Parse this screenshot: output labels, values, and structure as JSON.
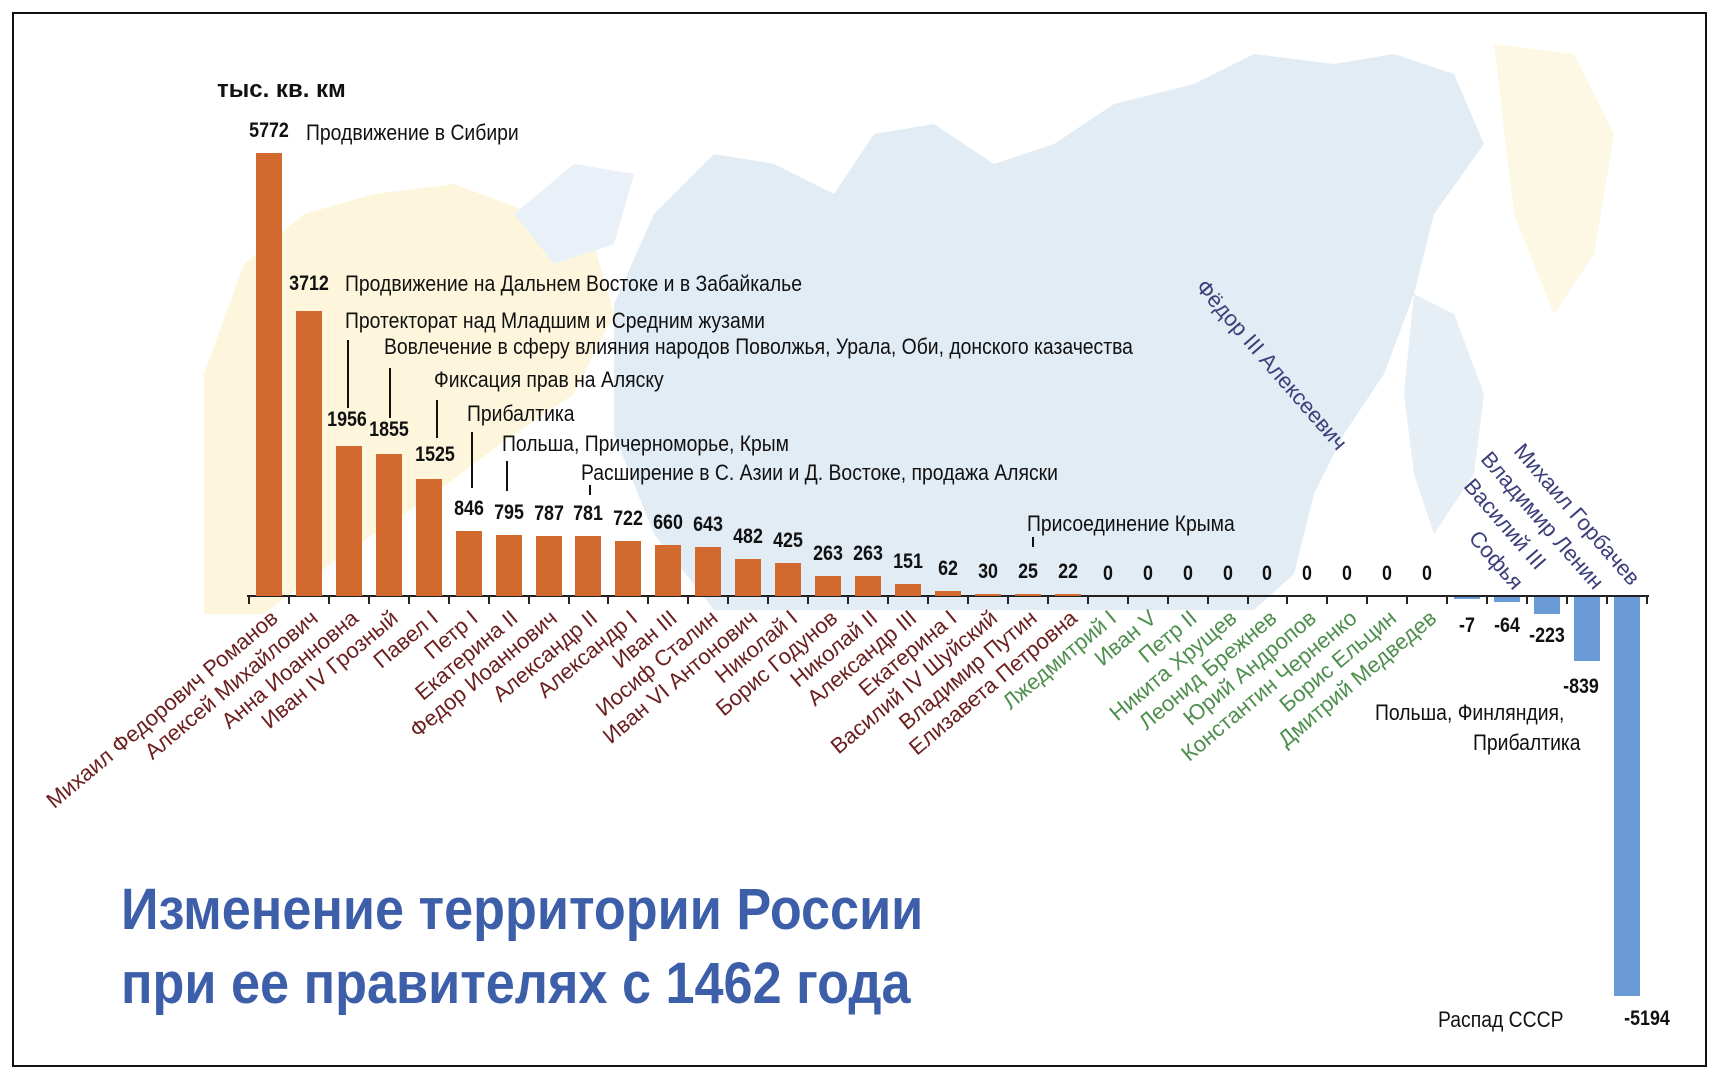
{
  "chart_data": {
    "type": "bar",
    "title": "Изменение территории России при ее правителях с 1462 года",
    "ylabel": "тыс. кв. км",
    "xlabel": "",
    "ylim": [
      -5194,
      5772
    ],
    "grid": false,
    "categories": [
      "Михаил Федорович Романов",
      "Алексей Михайлович",
      "Анна Иоанновна",
      "Иван IV Грозный",
      "Павел I",
      "Петр I",
      "Екатерина II",
      "Федор Иоаннович",
      "Александр II",
      "Александр I",
      "Иван III",
      "Иосиф Сталин",
      "Иван VI Антонович",
      "Николай I",
      "Борис Годунов",
      "Николай II",
      "Александр III",
      "Екатерина I",
      "Василий IV Шуйский",
      "Владимир Путин",
      "Елизавета Петровна",
      "Лжедмитрий I",
      "Иван V",
      "Петр II",
      "Никита Хрущев",
      "Леонид Брежнев",
      "Юрий Андропов",
      "Константин Черненко",
      "Борис Ельцин",
      "Дмитрий Медведев",
      "Фёдор III Алексеевич",
      "Софья",
      "Василий III",
      "Владимир Ленин",
      "Михаил Горбачев"
    ],
    "values": [
      5772,
      3712,
      1956,
      1855,
      1525,
      846,
      795,
      787,
      781,
      722,
      660,
      643,
      482,
      425,
      263,
      263,
      151,
      62,
      30,
      25,
      22,
      0,
      0,
      0,
      0,
      0,
      0,
      0,
      0,
      0,
      -7,
      -64,
      -223,
      -839,
      -5194
    ],
    "groups": {
      "gain": {
        "color": "#d2692e",
        "label_color": "#6b1f1f",
        "count": 21
      },
      "zero": {
        "color": "#5a9a5a",
        "label_color": "#4e8f4e",
        "count": 9
      },
      "loss": {
        "color": "#6a9bd6",
        "label_color": "#3c3f7a",
        "count": 5
      }
    },
    "annotations": [
      {
        "value": 5772,
        "text": "Продвижение в Сибири"
      },
      {
        "value": 3712,
        "text": "Продвижение на Дальнем Востоке и в Забайкалье"
      },
      {
        "value": 1956,
        "text": "Протекторат над Младшим и Средним жузами"
      },
      {
        "value": 1855,
        "text": "Вовлечение в сферу влияния народов Поволжья, Урала, Оби, донского казачества"
      },
      {
        "value": 1525,
        "text": "Фиксация прав на Аляску"
      },
      {
        "value": 846,
        "text": "Прибалтика"
      },
      {
        "value": 795,
        "text": "Польша, Причерноморье, Крым"
      },
      {
        "value": 781,
        "text": "Расширение в С. Азии и Д. Востоке, продажа Аляски"
      },
      {
        "value": 25,
        "text": "Присоединение Крыма"
      },
      {
        "value": -839,
        "text": "Польша, Финляндия, Прибалтика"
      },
      {
        "value": -5194,
        "text": "Распад СССР"
      }
    ]
  },
  "header": {
    "unit": "тыс. кв. км"
  },
  "title": {
    "line1": "Изменение территории России",
    "line2": "при ее правителях с 1462 года"
  },
  "annotations": {
    "a5772": "Продвижение в Сибири",
    "a3712": "Продвижение на Дальнем Востоке и в Забайкалье",
    "a1956": "Протекторат над Младшим и Средним жузами",
    "a1855": "Вовлечение в сферу влияния народов Поволжья, Урала, Оби, донского казачества",
    "a1525": "Фиксация прав на Аляску",
    "a846": "Прибалтика",
    "a795": "Польша, Причерноморье, Крым",
    "a781": "Расширение в С. Азии и Д. Востоке, продажа Аляски",
    "a25": "Присоединение Крыма",
    "a839_l1": "Польша, Финляндия,",
    "a839_l2": "Прибалтика",
    "a5194": "Распад СССР"
  },
  "colors": {
    "gain": "#d2692e",
    "loss": "#6a9bd6",
    "title": "#3d5ea8",
    "map": "#e2ecf5",
    "map_yellow": "#fdf6dc"
  }
}
